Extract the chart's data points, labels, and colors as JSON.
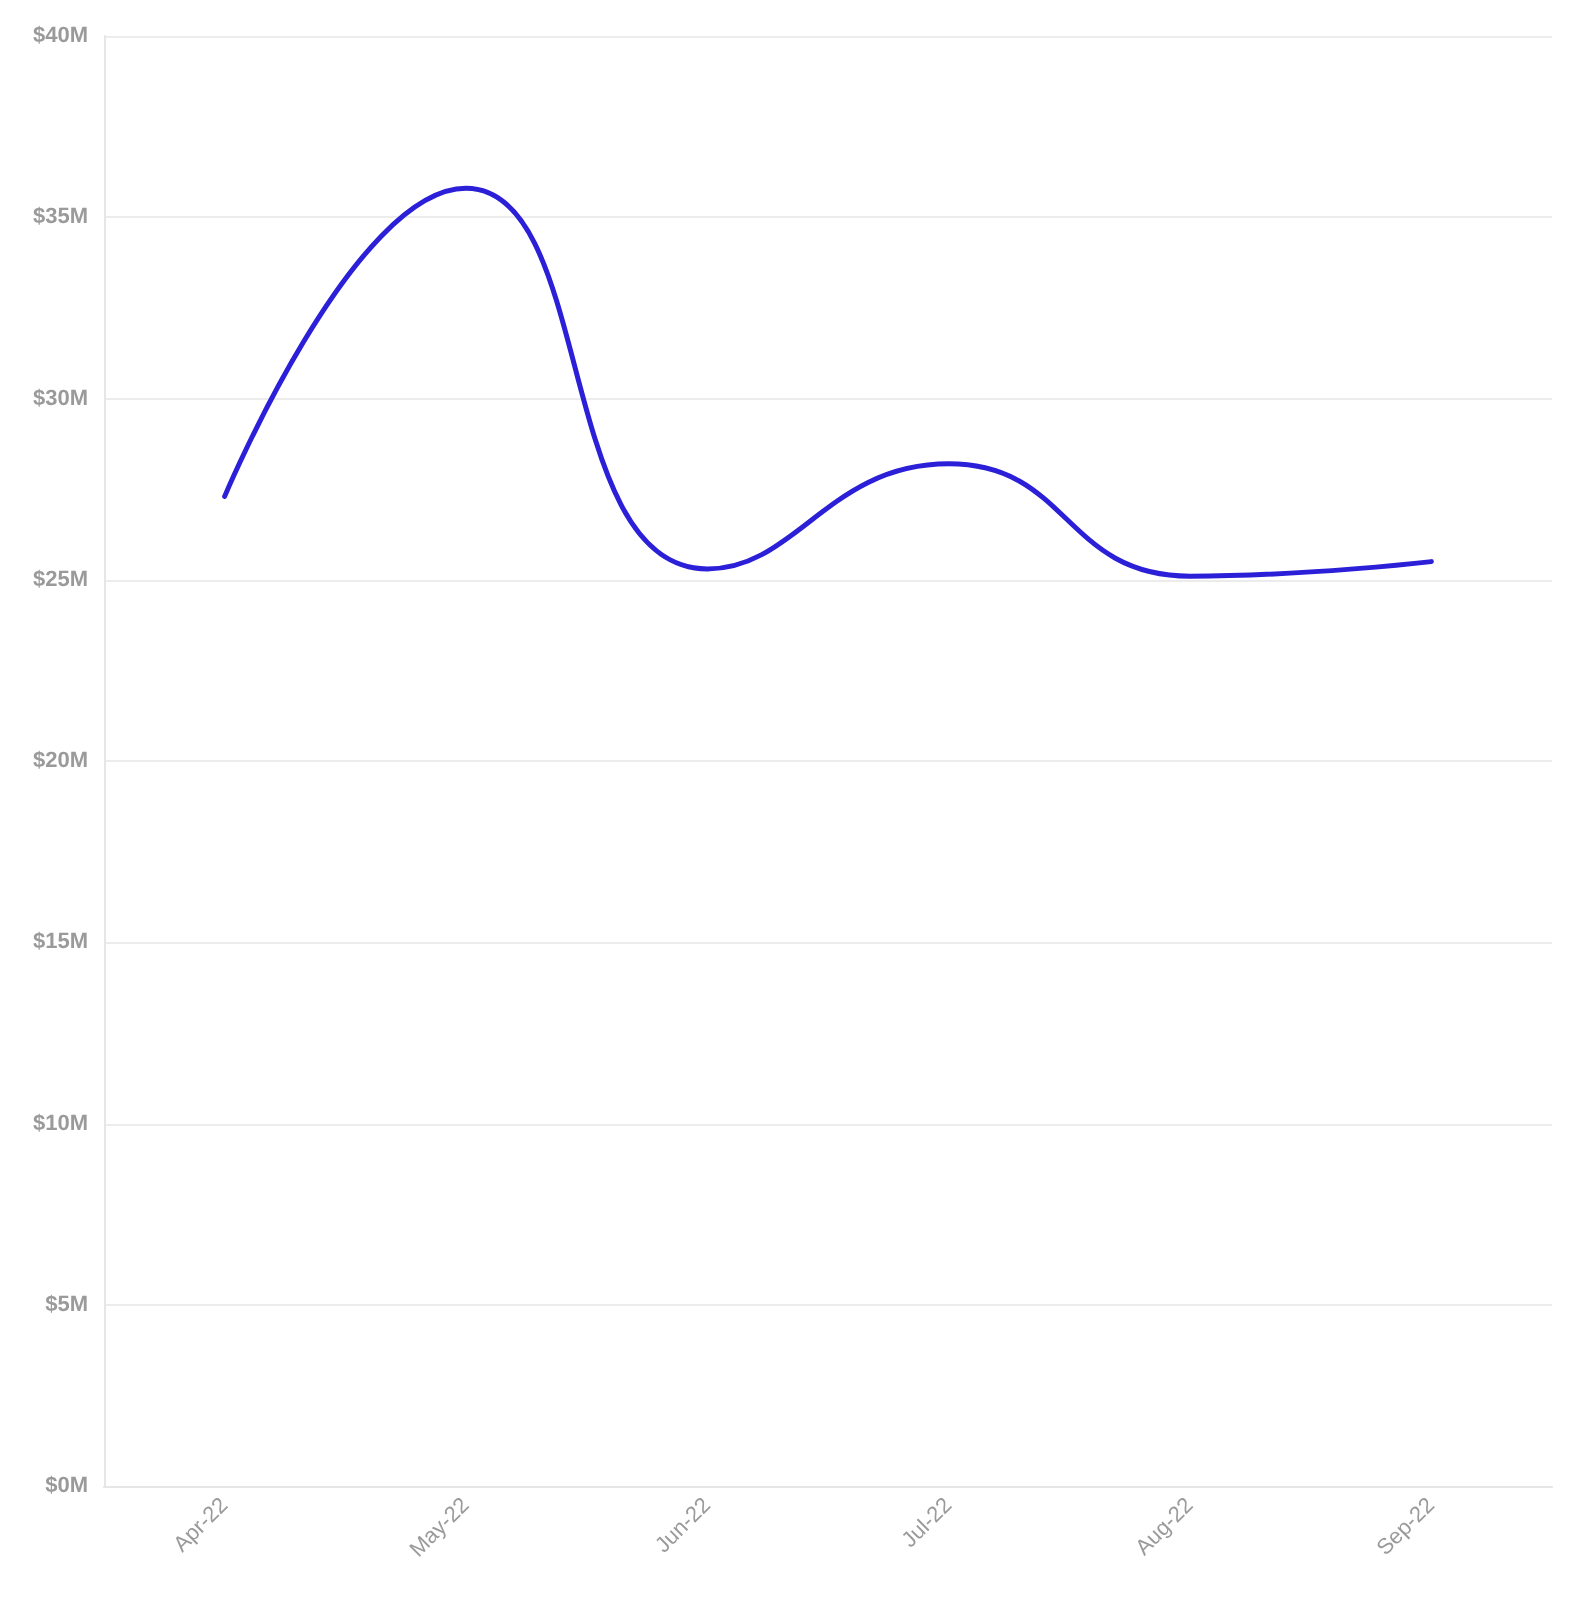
{
  "chart_data": {
    "type": "line",
    "categories": [
      "Apr-22",
      "May-22",
      "Jun-22",
      "Jul-22",
      "Aug-22",
      "Sep-22"
    ],
    "series": [
      {
        "color": "#2b1fd8",
        "values": [
          27.3,
          35.8,
          25.3,
          28.2,
          25.1,
          25.5
        ]
      }
    ],
    "ylim": [
      0,
      40
    ],
    "yticks": [
      {
        "value": 0,
        "label": "$0M"
      },
      {
        "value": 5,
        "label": "$5M"
      },
      {
        "value": 10,
        "label": "$10M"
      },
      {
        "value": 15,
        "label": "$15M"
      },
      {
        "value": 20,
        "label": "$20M"
      },
      {
        "value": 25,
        "label": "$25M"
      },
      {
        "value": 30,
        "label": "$30M"
      },
      {
        "value": 35,
        "label": "$35M"
      },
      {
        "value": 40,
        "label": "$40M"
      }
    ],
    "grid": "y",
    "marker": "none",
    "line_style": "solid"
  }
}
